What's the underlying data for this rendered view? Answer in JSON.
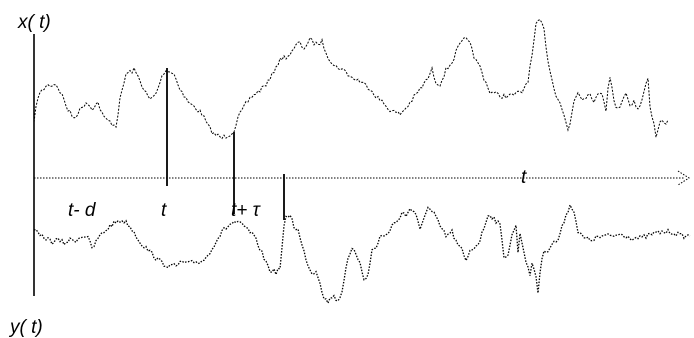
{
  "labels": {
    "x_axis": "x( t)",
    "y_axis": "y( t)",
    "time_axis": "t",
    "t_minus_d": "t- d",
    "t": "t",
    "t_plus_tau": "t+ τ"
  },
  "colors": {
    "stroke": "#000000",
    "background": "#ffffff"
  }
}
